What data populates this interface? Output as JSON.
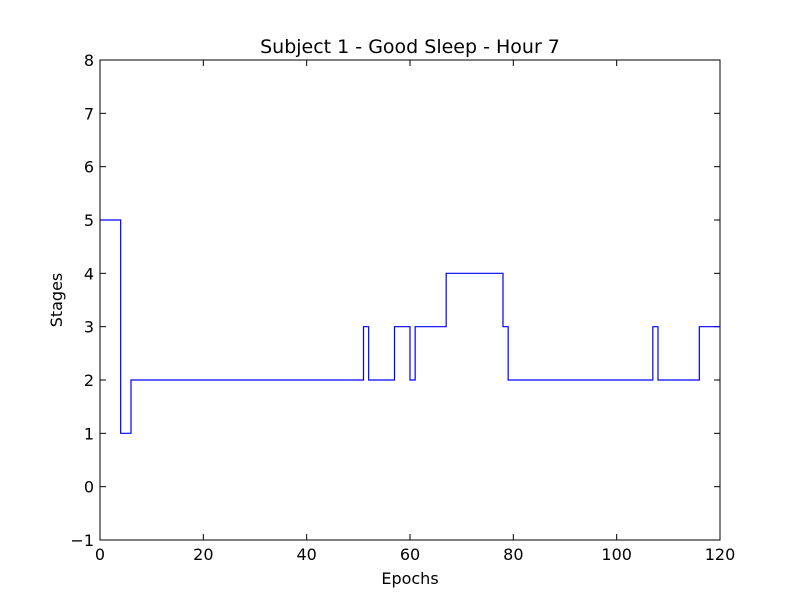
{
  "chart_data": {
    "type": "line",
    "title": "Subject 1 - Good Sleep - Hour 7",
    "xlabel": "Epochs",
    "ylabel": "Stages",
    "xlim": [
      0,
      120
    ],
    "ylim": [
      -1,
      8
    ],
    "x_ticks": [
      0,
      20,
      40,
      60,
      80,
      100,
      120
    ],
    "y_ticks": [
      -1,
      0,
      1,
      2,
      3,
      4,
      5,
      6,
      7,
      8
    ],
    "x_tick_labels": [
      "0",
      "20",
      "40",
      "60",
      "80",
      "100",
      "120"
    ],
    "y_tick_labels": [
      "−1",
      "0",
      "1",
      "2",
      "3",
      "4",
      "5",
      "6",
      "7",
      "8"
    ],
    "grid": false,
    "legend": false,
    "line_color": "#0000ff",
    "drawstyle": "steps",
    "series": [
      {
        "x": [
          0,
          4,
          6,
          51,
          52,
          57,
          60,
          61,
          67,
          78,
          79,
          107,
          108,
          116,
          120
        ],
        "y": [
          5,
          1,
          2,
          3,
          2,
          3,
          2,
          3,
          4,
          3,
          2,
          3,
          2,
          3,
          3
        ]
      }
    ]
  }
}
